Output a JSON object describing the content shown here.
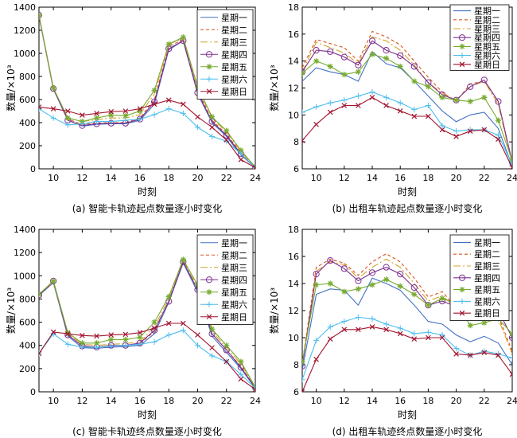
{
  "figure": {
    "charts": [
      {
        "caption": "(a) 智能卡轨迹起点数量逐小时变化",
        "xlabel": "时刻",
        "ylabel": "数量/×10³",
        "xlim": [
          9,
          24
        ],
        "ylim": [
          0,
          1400
        ],
        "xticks": [
          10,
          12,
          14,
          16,
          18,
          20,
          22,
          24
        ],
        "yticks": [
          0,
          200,
          400,
          600,
          800,
          1000,
          1200,
          1400
        ],
        "legend": "top-right"
      },
      {
        "caption": "(b) 出租车轨迹起点数量逐小时变化",
        "xlabel": "时刻",
        "ylabel": "数量/×10³",
        "xlim": [
          9,
          24
        ],
        "ylim": [
          6,
          18
        ],
        "xticks": [
          10,
          12,
          14,
          16,
          18,
          20,
          22,
          24
        ],
        "yticks": [
          6,
          8,
          10,
          12,
          14,
          16,
          18
        ],
        "legend": "top-right"
      },
      {
        "caption": "(c) 智能卡轨迹终点数量逐小时变化",
        "xlabel": "时刻",
        "ylabel": "数量/×10³",
        "xlim": [
          9,
          24
        ],
        "ylim": [
          0,
          1400
        ],
        "xticks": [
          10,
          12,
          14,
          16,
          18,
          20,
          22,
          24
        ],
        "yticks": [
          0,
          200,
          400,
          600,
          800,
          1000,
          1200,
          1400
        ],
        "legend": "top-right"
      },
      {
        "caption": "(d) 出租车轨迹终点数量逐小时变化",
        "xlabel": "时刻",
        "ylabel": "数量/×10³",
        "xlim": [
          9,
          24
        ],
        "ylim": [
          6,
          18
        ],
        "xticks": [
          10,
          12,
          14,
          16,
          18,
          20,
          22,
          24
        ],
        "yticks": [
          6,
          8,
          10,
          12,
          14,
          16,
          18
        ],
        "legend": "top-right"
      }
    ]
  },
  "series_styles": [
    {
      "name": "星期一",
      "color": "#4472c4",
      "dash": "",
      "marker": "none"
    },
    {
      "name": "星期二",
      "color": "#d9541e",
      "dash": "4,3",
      "marker": "none"
    },
    {
      "name": "星期三",
      "color": "#d4a42b",
      "dash": "9,3,2,3",
      "marker": "none"
    },
    {
      "name": "星期四",
      "color": "#7e2f8e",
      "dash": "",
      "marker": "circle"
    },
    {
      "name": "星期五",
      "color": "#77ac30",
      "dash": "",
      "marker": "star"
    },
    {
      "name": "星期六",
      "color": "#4dbeee",
      "dash": "",
      "marker": "plus"
    },
    {
      "name": "星期日",
      "color": "#a2142f",
      "dash": "",
      "marker": "x"
    }
  ],
  "chart_data": [
    {
      "type": "line",
      "title": "(a) 智能卡轨迹起点数量逐小时变化",
      "xlabel": "时刻",
      "ylabel": "数量/×10³",
      "ylim": [
        0,
        1400
      ],
      "x": [
        9,
        10,
        11,
        12,
        13,
        14,
        15,
        16,
        17,
        18,
        19,
        20,
        21,
        22,
        23,
        24
      ],
      "series": [
        {
          "name": "星期一",
          "values": [
            1320,
            690,
            420,
            370,
            385,
            390,
            390,
            420,
            560,
            1030,
            1110,
            650,
            400,
            280,
            120,
            10
          ]
        },
        {
          "name": "星期二",
          "values": [
            1325,
            690,
            430,
            385,
            395,
            400,
            400,
            440,
            600,
            1060,
            1120,
            680,
            420,
            300,
            140,
            10
          ]
        },
        {
          "name": "星期三",
          "values": [
            1325,
            690,
            440,
            410,
            425,
            440,
            440,
            470,
            650,
            1080,
            1130,
            700,
            440,
            320,
            150,
            10
          ]
        },
        {
          "name": "星期四",
          "values": [
            1330,
            695,
            420,
            375,
            390,
            395,
            395,
            430,
            580,
            1040,
            1110,
            660,
            410,
            290,
            130,
            10
          ]
        },
        {
          "name": "星期五",
          "values": [
            1330,
            700,
            440,
            410,
            440,
            465,
            460,
            500,
            680,
            1080,
            1140,
            710,
            450,
            330,
            160,
            15
          ]
        },
        {
          "name": "星期六",
          "values": [
            520,
            440,
            380,
            390,
            410,
            410,
            420,
            430,
            470,
            520,
            480,
            360,
            280,
            240,
            130,
            10
          ]
        },
        {
          "name": "星期日",
          "values": [
            535,
            520,
            500,
            465,
            480,
            495,
            500,
            520,
            560,
            595,
            560,
            450,
            360,
            250,
            80,
            10
          ]
        }
      ]
    },
    {
      "type": "line",
      "title": "(b) 出租车轨迹起点数量逐小时变化",
      "xlabel": "时刻",
      "ylabel": "数量/×10³",
      "ylim": [
        6,
        18
      ],
      "x": [
        9,
        10,
        11,
        12,
        13,
        14,
        15,
        16,
        17,
        18,
        19,
        20,
        21,
        22,
        23,
        24
      ],
      "series": [
        {
          "name": "星期一",
          "values": [
            12.5,
            13.5,
            13.2,
            13.0,
            12.5,
            14.7,
            13.8,
            13.5,
            12.5,
            11.4,
            10.3,
            9.5,
            10.0,
            10.2,
            9.0,
            6.2
          ]
        },
        {
          "name": "星期二",
          "values": [
            13.5,
            15.6,
            15.3,
            15.0,
            14.0,
            16.2,
            15.8,
            15.2,
            14.0,
            12.8,
            11.7,
            11.0,
            12.3,
            12.5,
            11.0,
            6.4
          ]
        },
        {
          "name": "星期三",
          "values": [
            13.2,
            15.4,
            15.0,
            14.6,
            13.8,
            15.8,
            15.5,
            14.8,
            13.7,
            12.4,
            11.6,
            11.1,
            12.1,
            12.5,
            10.8,
            6.3
          ]
        },
        {
          "name": "星期四",
          "values": [
            13.2,
            14.8,
            14.7,
            14.3,
            13.7,
            15.5,
            14.8,
            14.4,
            13.6,
            12.4,
            11.5,
            11.1,
            12.1,
            12.6,
            11.0,
            6.5
          ]
        },
        {
          "name": "星期五",
          "values": [
            13.1,
            14.0,
            13.6,
            13.0,
            13.2,
            14.5,
            14.2,
            13.6,
            12.5,
            12.1,
            11.3,
            11.1,
            11.0,
            11.3,
            9.6,
            6.6
          ]
        },
        {
          "name": "星期六",
          "values": [
            10.2,
            10.6,
            10.9,
            11.1,
            11.4,
            11.7,
            11.3,
            10.9,
            10.4,
            10.7,
            9.2,
            8.8,
            8.9,
            8.9,
            8.5,
            6.3
          ]
        },
        {
          "name": "星期日",
          "values": [
            8.1,
            9.3,
            10.2,
            10.7,
            10.7,
            11.3,
            10.7,
            10.3,
            9.9,
            9.9,
            8.9,
            8.4,
            8.8,
            8.9,
            8.2,
            6.1
          ]
        }
      ]
    },
    {
      "type": "line",
      "title": "(c) 智能卡轨迹终点数量逐小时变化",
      "xlabel": "时刻",
      "ylabel": "数量/×10³",
      "ylim": [
        0,
        1400
      ],
      "x": [
        9,
        10,
        11,
        12,
        13,
        14,
        15,
        16,
        17,
        18,
        19,
        20,
        21,
        22,
        23,
        24
      ],
      "series": [
        {
          "name": "星期一",
          "values": [
            830,
            940,
            480,
            380,
            375,
            385,
            390,
            400,
            500,
            770,
            1110,
            860,
            480,
            340,
            200,
            30
          ]
        },
        {
          "name": "星期二",
          "values": [
            835,
            945,
            490,
            395,
            385,
            395,
            400,
            415,
            520,
            780,
            1120,
            880,
            500,
            360,
            220,
            35
          ]
        },
        {
          "name": "星期三",
          "values": [
            840,
            950,
            500,
            410,
            400,
            410,
            415,
            430,
            560,
            800,
            1130,
            900,
            520,
            380,
            240,
            40
          ]
        },
        {
          "name": "星期四",
          "values": [
            835,
            955,
            490,
            395,
            385,
            400,
            400,
            420,
            530,
            780,
            1120,
            880,
            500,
            360,
            210,
            35
          ]
        },
        {
          "name": "星期五",
          "values": [
            840,
            955,
            510,
            420,
            420,
            450,
            450,
            470,
            600,
            820,
            1140,
            920,
            540,
            400,
            260,
            40
          ]
        },
        {
          "name": "星期六",
          "values": [
            330,
            500,
            410,
            385,
            385,
            395,
            400,
            410,
            430,
            490,
            530,
            400,
            310,
            260,
            150,
            30
          ]
        },
        {
          "name": "星期日",
          "values": [
            330,
            515,
            500,
            485,
            480,
            490,
            495,
            510,
            550,
            590,
            590,
            490,
            380,
            260,
            110,
            20
          ]
        }
      ]
    },
    {
      "type": "line",
      "title": "(d) 出租车轨迹终点数量逐小时变化",
      "xlabel": "时刻",
      "ylabel": "数量/×10³",
      "ylim": [
        6,
        18
      ],
      "x": [
        9,
        10,
        11,
        12,
        13,
        14,
        15,
        16,
        17,
        18,
        19,
        20,
        21,
        22,
        23,
        24
      ],
      "series": [
        {
          "name": "星期一",
          "values": [
            7.6,
            13.2,
            13.6,
            13.5,
            12.4,
            14.4,
            14.0,
            13.5,
            12.4,
            11.2,
            11.0,
            10.2,
            9.7,
            10.1,
            9.6,
            8.0
          ]
        },
        {
          "name": "星期二",
          "values": [
            8.1,
            15.2,
            15.8,
            15.5,
            14.6,
            15.6,
            16.2,
            15.6,
            14.4,
            13.0,
            13.4,
            12.2,
            12.5,
            12.6,
            11.6,
            9.0
          ]
        },
        {
          "name": "星期三",
          "values": [
            8.0,
            14.9,
            15.6,
            15.4,
            14.4,
            15.2,
            15.8,
            15.2,
            14.0,
            12.7,
            13.1,
            12.2,
            12.3,
            12.4,
            11.4,
            8.8
          ]
        },
        {
          "name": "星期四",
          "values": [
            7.9,
            14.7,
            15.7,
            15.1,
            14.2,
            14.8,
            15.2,
            14.7,
            13.7,
            12.4,
            12.7,
            12.3,
            11.8,
            12.0,
            12.0,
            10.0
          ]
        },
        {
          "name": "星期五",
          "values": [
            8.2,
            13.9,
            14.0,
            13.4,
            13.6,
            13.9,
            14.3,
            13.8,
            13.2,
            12.4,
            12.9,
            12.5,
            10.9,
            11.1,
            11.4,
            10.3
          ]
        },
        {
          "name": "星期六",
          "values": [
            6.9,
            9.8,
            10.8,
            11.2,
            11.5,
            11.4,
            11.0,
            10.7,
            10.3,
            10.4,
            10.2,
            9.2,
            8.7,
            9.0,
            8.8,
            8.5
          ]
        },
        {
          "name": "星期日",
          "values": [
            6.0,
            8.4,
            9.9,
            10.6,
            10.6,
            10.8,
            10.6,
            10.3,
            9.9,
            10.0,
            10.0,
            8.8,
            8.7,
            8.9,
            8.7,
            7.3
          ]
        }
      ]
    }
  ]
}
